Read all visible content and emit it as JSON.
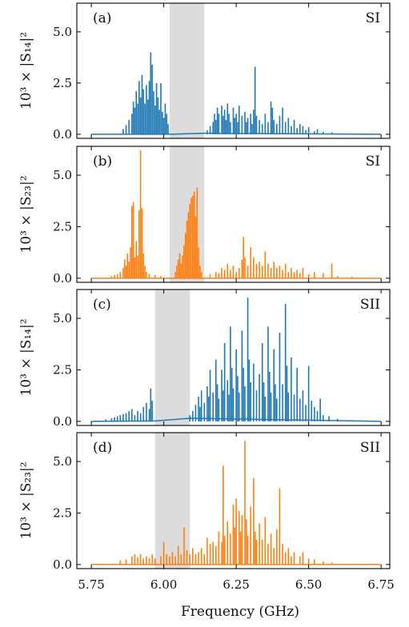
{
  "colors": {
    "blue": "#1f77b4",
    "orange": "#ff7f0e",
    "band": "#dcdcdc"
  },
  "x_axis": {
    "label": "Frequency (GHz)",
    "range": [
      5.7,
      6.78
    ],
    "ticks": [
      5.75,
      6.0,
      6.25,
      6.5,
      6.75
    ],
    "tick_labels": [
      "5.75",
      "6.00",
      "6.25",
      "6.50",
      "6.75"
    ]
  },
  "chart_data": [
    {
      "type": "line",
      "panel": "(a)",
      "tag": "SI",
      "ylabel": "10³ × |S₁₄|²",
      "ylim": [
        -0.2,
        6.4
      ],
      "yticks": [
        0.0,
        2.5,
        5.0
      ],
      "ytick_labels": [
        "0.0",
        "2.5",
        "5.0"
      ],
      "color": "blue",
      "band": [
        6.02,
        6.14
      ],
      "baseline": [
        [
          5.75,
          0.0
        ],
        [
          6.02,
          0.0
        ],
        [
          6.14,
          0.05
        ],
        [
          6.75,
          0.0
        ]
      ],
      "peaks": [
        [
          5.86,
          0.25
        ],
        [
          5.87,
          0.45
        ],
        [
          5.88,
          0.7
        ],
        [
          5.89,
          1.0
        ],
        [
          5.895,
          1.6
        ],
        [
          5.9,
          1.3
        ],
        [
          5.905,
          2.1
        ],
        [
          5.91,
          1.5
        ],
        [
          5.915,
          2.6
        ],
        [
          5.92,
          1.8
        ],
        [
          5.925,
          2.9
        ],
        [
          5.93,
          2.2
        ],
        [
          5.935,
          1.5
        ],
        [
          5.94,
          2.4
        ],
        [
          5.945,
          1.7
        ],
        [
          5.95,
          2.6
        ],
        [
          5.955,
          4.0
        ],
        [
          5.96,
          3.4
        ],
        [
          5.965,
          2.1
        ],
        [
          5.97,
          1.4
        ],
        [
          5.975,
          2.5
        ],
        [
          5.98,
          1.8
        ],
        [
          5.985,
          1.2
        ],
        [
          5.99,
          2.5
        ],
        [
          5.995,
          1.1
        ],
        [
          6.0,
          0.8
        ],
        [
          6.005,
          1.5
        ],
        [
          6.01,
          1.0
        ],
        [
          6.015,
          0.5
        ],
        [
          6.15,
          0.2
        ],
        [
          6.16,
          0.4
        ],
        [
          6.17,
          0.6
        ],
        [
          6.175,
          1.0
        ],
        [
          6.18,
          0.7
        ],
        [
          6.185,
          1.3
        ],
        [
          6.19,
          1.0
        ],
        [
          6.2,
          1.4
        ],
        [
          6.205,
          0.9
        ],
        [
          6.21,
          1.2
        ],
        [
          6.215,
          0.7
        ],
        [
          6.22,
          1.5
        ],
        [
          6.225,
          1.0
        ],
        [
          6.23,
          0.6
        ],
        [
          6.24,
          1.3
        ],
        [
          6.245,
          0.8
        ],
        [
          6.25,
          1.0
        ],
        [
          6.255,
          0.6
        ],
        [
          6.26,
          1.4
        ],
        [
          6.27,
          0.9
        ],
        [
          6.28,
          1.1
        ],
        [
          6.285,
          0.6
        ],
        [
          6.29,
          0.8
        ],
        [
          6.3,
          1.0
        ],
        [
          6.305,
          0.5
        ],
        [
          6.31,
          1.2
        ],
        [
          6.315,
          3.3
        ],
        [
          6.32,
          0.9
        ],
        [
          6.33,
          0.7
        ],
        [
          6.34,
          0.5
        ],
        [
          6.35,
          1.0
        ],
        [
          6.36,
          0.6
        ],
        [
          6.37,
          1.6
        ],
        [
          6.375,
          1.3
        ],
        [
          6.38,
          0.7
        ],
        [
          6.39,
          0.5
        ],
        [
          6.4,
          0.9
        ],
        [
          6.41,
          1.3
        ],
        [
          6.42,
          0.6
        ],
        [
          6.43,
          0.8
        ],
        [
          6.44,
          0.4
        ],
        [
          6.45,
          0.7
        ],
        [
          6.46,
          0.3
        ],
        [
          6.47,
          0.5
        ],
        [
          6.48,
          0.4
        ],
        [
          6.49,
          0.2
        ],
        [
          6.5,
          0.35
        ],
        [
          6.52,
          0.15
        ],
        [
          6.53,
          0.25
        ],
        [
          6.55,
          0.12
        ],
        [
          6.58,
          0.1
        ]
      ]
    },
    {
      "type": "line",
      "panel": "(b)",
      "tag": "SI",
      "ylabel": "10³ × |S₂₃|²",
      "ylim": [
        -0.2,
        6.4
      ],
      "yticks": [
        0.0,
        2.5,
        5.0
      ],
      "ytick_labels": [
        "0.0",
        "2.5",
        "5.0"
      ],
      "color": "orange",
      "band": [
        6.02,
        6.14
      ],
      "baseline": [
        [
          5.75,
          0.0
        ],
        [
          6.75,
          0.0
        ]
      ],
      "peaks": [
        [
          5.82,
          0.1
        ],
        [
          5.83,
          0.15
        ],
        [
          5.84,
          0.2
        ],
        [
          5.85,
          0.3
        ],
        [
          5.86,
          0.5
        ],
        [
          5.865,
          0.9
        ],
        [
          5.87,
          0.6
        ],
        [
          5.875,
          1.2
        ],
        [
          5.88,
          0.8
        ],
        [
          5.885,
          1.5
        ],
        [
          5.89,
          3.5
        ],
        [
          5.895,
          3.7
        ],
        [
          5.9,
          1.0
        ],
        [
          5.905,
          1.8
        ],
        [
          5.91,
          1.1
        ],
        [
          5.915,
          3.3
        ],
        [
          5.92,
          6.2
        ],
        [
          5.925,
          3.4
        ],
        [
          5.93,
          1.2
        ],
        [
          5.935,
          0.6
        ],
        [
          5.94,
          0.3
        ],
        [
          5.95,
          0.2
        ],
        [
          5.97,
          0.15
        ],
        [
          5.99,
          0.1
        ],
        [
          6.04,
          0.3
        ],
        [
          6.045,
          0.6
        ],
        [
          6.05,
          0.9
        ],
        [
          6.055,
          1.2
        ],
        [
          6.06,
          0.7
        ],
        [
          6.065,
          1.1
        ],
        [
          6.07,
          1.6
        ],
        [
          6.075,
          2.2
        ],
        [
          6.08,
          2.8
        ],
        [
          6.085,
          3.2
        ],
        [
          6.09,
          3.6
        ],
        [
          6.095,
          3.9
        ],
        [
          6.1,
          4.0
        ],
        [
          6.105,
          4.2
        ],
        [
          6.11,
          3.0
        ],
        [
          6.115,
          4.4
        ],
        [
          6.12,
          1.5
        ],
        [
          6.125,
          0.6
        ],
        [
          6.13,
          0.3
        ],
        [
          6.16,
          0.2
        ],
        [
          6.18,
          0.3
        ],
        [
          6.19,
          0.25
        ],
        [
          6.2,
          0.5
        ],
        [
          6.21,
          0.4
        ],
        [
          6.22,
          0.7
        ],
        [
          6.23,
          0.4
        ],
        [
          6.24,
          0.6
        ],
        [
          6.25,
          0.3
        ],
        [
          6.26,
          0.5
        ],
        [
          6.27,
          0.9
        ],
        [
          6.275,
          2.0
        ],
        [
          6.28,
          1.0
        ],
        [
          6.29,
          0.6
        ],
        [
          6.3,
          1.5
        ],
        [
          6.31,
          1.0
        ],
        [
          6.32,
          0.7
        ],
        [
          6.33,
          0.8
        ],
        [
          6.34,
          0.6
        ],
        [
          6.35,
          1.3
        ],
        [
          6.36,
          0.7
        ],
        [
          6.37,
          0.5
        ],
        [
          6.38,
          0.8
        ],
        [
          6.39,
          0.5
        ],
        [
          6.4,
          0.6
        ],
        [
          6.41,
          0.4
        ],
        [
          6.42,
          0.7
        ],
        [
          6.43,
          0.3
        ],
        [
          6.44,
          0.5
        ],
        [
          6.45,
          0.3
        ],
        [
          6.46,
          0.4
        ],
        [
          6.47,
          0.25
        ],
        [
          6.48,
          0.5
        ],
        [
          6.5,
          0.2
        ],
        [
          6.52,
          0.3
        ],
        [
          6.55,
          0.25
        ],
        [
          6.58,
          0.7
        ],
        [
          6.6,
          0.1
        ],
        [
          6.65,
          0.08
        ]
      ]
    },
    {
      "type": "line",
      "panel": "(c)",
      "tag": "SII",
      "ylabel": "10³ × |S₁₄|²",
      "ylim": [
        -0.2,
        6.4
      ],
      "yticks": [
        0.0,
        2.5,
        5.0
      ],
      "ytick_labels": [
        "0.0",
        "2.5",
        "5.0"
      ],
      "color": "blue",
      "band": [
        5.97,
        6.09
      ],
      "baseline": [
        [
          5.75,
          0.0
        ],
        [
          5.97,
          0.02
        ],
        [
          6.09,
          0.15
        ],
        [
          6.75,
          0.0
        ]
      ],
      "peaks": [
        [
          5.8,
          0.1
        ],
        [
          5.82,
          0.15
        ],
        [
          5.83,
          0.2
        ],
        [
          5.84,
          0.25
        ],
        [
          5.85,
          0.3
        ],
        [
          5.86,
          0.35
        ],
        [
          5.87,
          0.4
        ],
        [
          5.88,
          0.5
        ],
        [
          5.89,
          0.6
        ],
        [
          5.9,
          0.3
        ],
        [
          5.91,
          0.5
        ],
        [
          5.92,
          0.4
        ],
        [
          5.93,
          0.7
        ],
        [
          5.94,
          0.9
        ],
        [
          5.95,
          0.6
        ],
        [
          5.955,
          1.6
        ],
        [
          5.96,
          1.0
        ],
        [
          6.09,
          0.3
        ],
        [
          6.1,
          0.5
        ],
        [
          6.11,
          0.8
        ],
        [
          6.12,
          1.2
        ],
        [
          6.125,
          0.7
        ],
        [
          6.13,
          1.5
        ],
        [
          6.14,
          0.9
        ],
        [
          6.15,
          1.7
        ],
        [
          6.155,
          1.2
        ],
        [
          6.16,
          2.5
        ],
        [
          6.17,
          1.4
        ],
        [
          6.18,
          3.0
        ],
        [
          6.185,
          1.8
        ],
        [
          6.19,
          1.1
        ],
        [
          6.2,
          2.5
        ],
        [
          6.205,
          1.5
        ],
        [
          6.21,
          3.8
        ],
        [
          6.22,
          2.0
        ],
        [
          6.225,
          1.3
        ],
        [
          6.23,
          4.6
        ],
        [
          6.235,
          2.6
        ],
        [
          6.24,
          1.6
        ],
        [
          6.25,
          3.5
        ],
        [
          6.255,
          2.2
        ],
        [
          6.26,
          1.4
        ],
        [
          6.27,
          4.4
        ],
        [
          6.275,
          2.6
        ],
        [
          6.28,
          1.7
        ],
        [
          6.29,
          6.0
        ],
        [
          6.295,
          3.0
        ],
        [
          6.3,
          1.9
        ],
        [
          6.31,
          2.8
        ],
        [
          6.32,
          1.5
        ],
        [
          6.33,
          2.3
        ],
        [
          6.34,
          3.8
        ],
        [
          6.345,
          1.9
        ],
        [
          6.35,
          1.2
        ],
        [
          6.36,
          4.6
        ],
        [
          6.365,
          2.4
        ],
        [
          6.37,
          1.4
        ],
        [
          6.38,
          3.5
        ],
        [
          6.385,
          1.8
        ],
        [
          6.39,
          1.1
        ],
        [
          6.4,
          4.3
        ],
        [
          6.41,
          1.8
        ],
        [
          6.42,
          5.7
        ],
        [
          6.425,
          2.7
        ],
        [
          6.43,
          1.4
        ],
        [
          6.44,
          3.1
        ],
        [
          6.45,
          1.3
        ],
        [
          6.46,
          2.6
        ],
        [
          6.47,
          1.1
        ],
        [
          6.48,
          1.5
        ],
        [
          6.49,
          0.8
        ],
        [
          6.5,
          2.7
        ],
        [
          6.51,
          1.0
        ],
        [
          6.52,
          0.7
        ],
        [
          6.53,
          0.5
        ],
        [
          6.54,
          1.1
        ],
        [
          6.55,
          0.3
        ],
        [
          6.57,
          0.25
        ],
        [
          6.6,
          0.12
        ]
      ]
    },
    {
      "type": "line",
      "panel": "(d)",
      "tag": "SII",
      "ylabel": "10³ × |S₂₃|²",
      "ylim": [
        -0.2,
        6.4
      ],
      "yticks": [
        0.0,
        2.5,
        5.0
      ],
      "ytick_labels": [
        "0.0",
        "2.5",
        "5.0"
      ],
      "color": "orange",
      "band": [
        5.97,
        6.09
      ],
      "baseline": [
        [
          5.75,
          0.0
        ],
        [
          6.75,
          0.0
        ]
      ],
      "peaks": [
        [
          5.85,
          0.2
        ],
        [
          5.87,
          0.25
        ],
        [
          5.89,
          0.4
        ],
        [
          5.9,
          0.5
        ],
        [
          5.91,
          0.35
        ],
        [
          5.92,
          0.5
        ],
        [
          5.93,
          0.3
        ],
        [
          5.94,
          0.4
        ],
        [
          5.95,
          0.3
        ],
        [
          5.96,
          0.5
        ],
        [
          5.97,
          0.3
        ],
        [
          5.99,
          0.4
        ],
        [
          6.0,
          1.1
        ],
        [
          6.01,
          0.5
        ],
        [
          6.02,
          0.4
        ],
        [
          6.03,
          0.6
        ],
        [
          6.04,
          0.4
        ],
        [
          6.05,
          0.9
        ],
        [
          6.06,
          0.5
        ],
        [
          6.07,
          1.8
        ],
        [
          6.08,
          0.7
        ],
        [
          6.09,
          0.5
        ],
        [
          6.1,
          0.8
        ],
        [
          6.11,
          0.5
        ],
        [
          6.12,
          0.6
        ],
        [
          6.13,
          0.8
        ],
        [
          6.14,
          0.5
        ],
        [
          6.15,
          1.3
        ],
        [
          6.16,
          1.0
        ],
        [
          6.17,
          1.1
        ],
        [
          6.18,
          0.9
        ],
        [
          6.19,
          1.6
        ],
        [
          6.2,
          1.1
        ],
        [
          6.205,
          4.8
        ],
        [
          6.21,
          1.4
        ],
        [
          6.22,
          2.1
        ],
        [
          6.23,
          1.5
        ],
        [
          6.24,
          2.9
        ],
        [
          6.245,
          1.8
        ],
        [
          6.25,
          3.2
        ],
        [
          6.26,
          2.6
        ],
        [
          6.265,
          1.6
        ],
        [
          6.27,
          2.4
        ],
        [
          6.28,
          6.0
        ],
        [
          6.285,
          2.2
        ],
        [
          6.29,
          1.4
        ],
        [
          6.3,
          2.8
        ],
        [
          6.31,
          4.2
        ],
        [
          6.315,
          1.6
        ],
        [
          6.32,
          1.2
        ],
        [
          6.33,
          2.0
        ],
        [
          6.34,
          1.2
        ],
        [
          6.35,
          2.3
        ],
        [
          6.36,
          1.0
        ],
        [
          6.37,
          1.5
        ],
        [
          6.38,
          0.8
        ],
        [
          6.39,
          1.7
        ],
        [
          6.4,
          3.7
        ],
        [
          6.41,
          1.0
        ],
        [
          6.42,
          0.6
        ],
        [
          6.43,
          0.8
        ],
        [
          6.44,
          0.4
        ],
        [
          6.45,
          0.6
        ],
        [
          6.47,
          0.4
        ],
        [
          6.48,
          0.6
        ],
        [
          6.5,
          0.3
        ],
        [
          6.52,
          0.25
        ],
        [
          6.55,
          0.15
        ],
        [
          6.58,
          0.1
        ]
      ]
    }
  ]
}
